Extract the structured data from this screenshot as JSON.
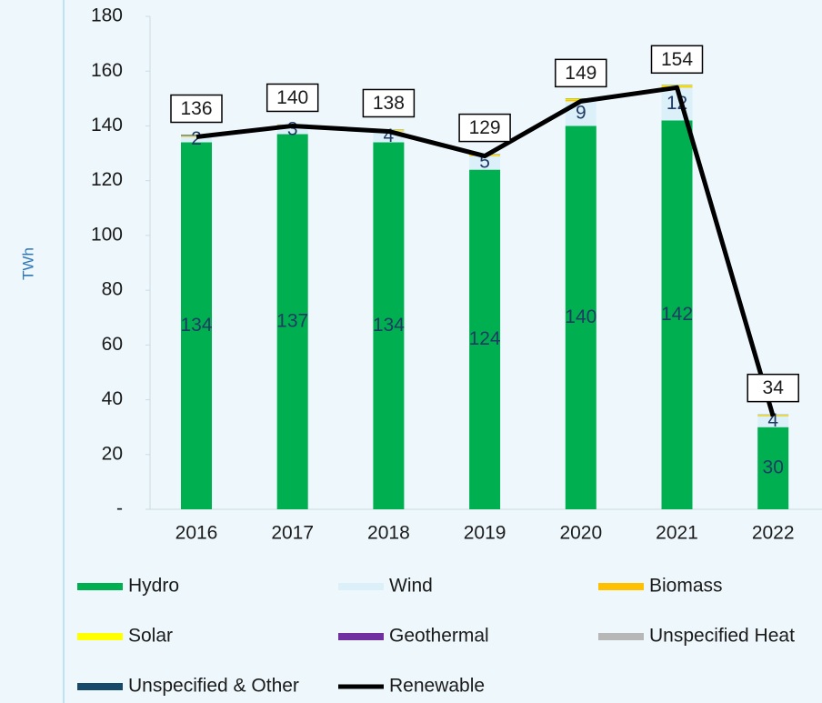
{
  "chart_data": {
    "type": "stacked_bar_line",
    "y_label": "TWh",
    "categories": [
      "2016",
      "2017",
      "2018",
      "2019",
      "2020",
      "2021",
      "2022"
    ],
    "ylim": [
      0,
      180
    ],
    "yticks": [
      {
        "value": 0,
        "label": "-"
      },
      20,
      40,
      60,
      80,
      100,
      120,
      140,
      160,
      180
    ],
    "series": [
      {
        "name": "Hydro",
        "color": "#00b050",
        "values": [
          134,
          137,
          134,
          124,
          140,
          142,
          30
        ],
        "show_labels": true
      },
      {
        "name": "Wind",
        "color": "#dcf0fa",
        "values": [
          2,
          3,
          4,
          5,
          9,
          12,
          4
        ],
        "show_labels": true
      },
      {
        "name": "Biomass",
        "color": "#ffc000",
        "values": [
          0.3,
          0.3,
          0.3,
          0.4,
          0.6,
          0.5,
          0.3
        ]
      },
      {
        "name": "Solar",
        "color": "#ffff00",
        "values": [
          0.1,
          0.1,
          0.2,
          0.2,
          0.4,
          0.4,
          0.2
        ]
      },
      {
        "name": "Geothermal",
        "color": "#7030a0",
        "values": [
          0,
          0,
          0,
          0,
          0,
          0,
          0
        ]
      },
      {
        "name": "Unspecified Heat",
        "color": "#b7b7b7",
        "values": [
          0,
          0,
          0,
          0,
          0,
          0,
          0
        ]
      },
      {
        "name": "Unspecified & Other",
        "color": "#17496b",
        "values": [
          0.3,
          0.1,
          0.1,
          0.1,
          0.1,
          0.1,
          0.1
        ]
      },
      {
        "name": "Renewable",
        "type": "line",
        "color": "#000000",
        "values": [
          136,
          140,
          138,
          129,
          149,
          154,
          34
        ],
        "show_labels": true
      }
    ]
  }
}
